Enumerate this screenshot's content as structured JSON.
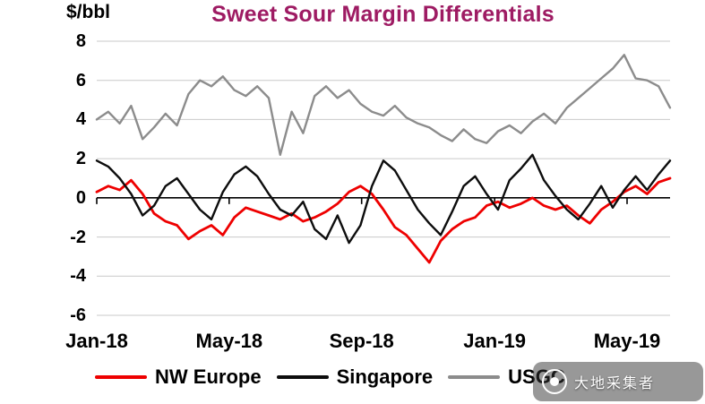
{
  "chart_data": {
    "type": "line",
    "title": "Sweet Sour Margin Differentials",
    "ylabel": "$/bbl",
    "xlabel": "",
    "ylim": [
      -6,
      8
    ],
    "yticks": [
      8,
      6,
      4,
      2,
      0,
      -2,
      -4,
      -6
    ],
    "grid": true,
    "legend_position": "bottom",
    "x_range": [
      "Jan-18",
      "Jun-19"
    ],
    "xticks": [
      {
        "label": "Jan-18",
        "pos": 0.0
      },
      {
        "label": "May-18",
        "pos": 0.231
      },
      {
        "label": "Sep-18",
        "pos": 0.462
      },
      {
        "label": "Jan-19",
        "pos": 0.694
      },
      {
        "label": "May-19",
        "pos": 0.925
      }
    ],
    "series": [
      {
        "id": "nw-europe",
        "name": "NW Europe",
        "color": "#ee0000",
        "width": 2.8,
        "values": [
          0.3,
          0.6,
          0.4,
          0.9,
          0.2,
          -0.8,
          -1.2,
          -1.4,
          -2.1,
          -1.7,
          -1.4,
          -1.9,
          -1.0,
          -0.5,
          -0.7,
          -0.9,
          -1.1,
          -0.8,
          -1.2,
          -1.0,
          -0.7,
          -0.3,
          0.3,
          0.6,
          0.2,
          -0.6,
          -1.5,
          -1.9,
          -2.6,
          -3.3,
          -2.2,
          -1.6,
          -1.2,
          -1.0,
          -0.4,
          -0.2,
          -0.5,
          -0.3,
          0.0,
          -0.4,
          -0.6,
          -0.4,
          -0.9,
          -1.3,
          -0.6,
          -0.2,
          0.3,
          0.6,
          0.2,
          0.8,
          1.0
        ]
      },
      {
        "id": "singapore",
        "name": "Singapore",
        "color": "#0d0d0d",
        "width": 2.4,
        "values": [
          1.9,
          1.6,
          1.0,
          0.2,
          -0.9,
          -0.4,
          0.6,
          1.0,
          0.2,
          -0.6,
          -1.1,
          0.3,
          1.2,
          1.6,
          1.1,
          0.2,
          -0.6,
          -0.9,
          -0.2,
          -1.6,
          -2.1,
          -0.9,
          -2.3,
          -1.4,
          0.6,
          1.9,
          1.4,
          0.4,
          -0.6,
          -1.3,
          -1.9,
          -0.7,
          0.6,
          1.1,
          0.2,
          -0.6,
          0.9,
          1.5,
          2.2,
          0.9,
          0.1,
          -0.6,
          -1.1,
          -0.3,
          0.6,
          -0.5,
          0.4,
          1.1,
          0.4,
          1.2,
          1.9
        ]
      },
      {
        "id": "usgc",
        "name": "USGC",
        "color": "#8c8c8c",
        "width": 2.4,
        "values": [
          4.0,
          4.4,
          3.8,
          4.7,
          3.0,
          3.6,
          4.3,
          3.7,
          5.3,
          6.0,
          5.7,
          6.2,
          5.5,
          5.2,
          5.7,
          5.1,
          2.2,
          4.4,
          3.3,
          5.2,
          5.7,
          5.1,
          5.5,
          4.8,
          4.4,
          4.2,
          4.7,
          4.1,
          3.8,
          3.6,
          3.2,
          2.9,
          3.5,
          3.0,
          2.8,
          3.4,
          3.7,
          3.3,
          3.9,
          4.3,
          3.8,
          4.6,
          5.1,
          5.6,
          6.1,
          6.6,
          7.3,
          6.1,
          6.0,
          5.7,
          4.6
        ]
      }
    ]
  },
  "legend": {
    "items": [
      {
        "name": "NW Europe",
        "color": "#ee0000"
      },
      {
        "name": "Singapore",
        "color": "#0d0d0d"
      },
      {
        "name": "USGC",
        "color": "#8c8c8c"
      }
    ]
  },
  "watermark": {
    "text": "大地采集者"
  }
}
